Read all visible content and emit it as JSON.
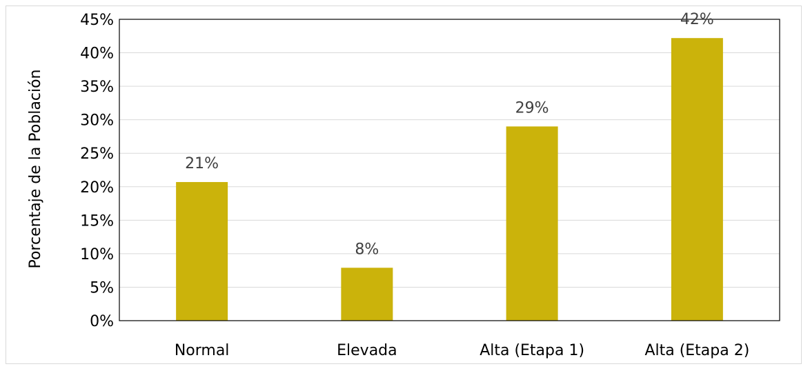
{
  "chart_data": {
    "type": "bar",
    "categories": [
      "Normal",
      "Elevada",
      "Alta (Etapa 1)",
      "Alta (Etapa 2)"
    ],
    "values": [
      20.7,
      7.9,
      29.0,
      42.2
    ],
    "data_labels": [
      "21%",
      "8%",
      "29%",
      "42%"
    ],
    "title": "",
    "xlabel": "",
    "ylabel": "Porcentaje de la Población",
    "ylim": [
      0,
      45
    ],
    "yticks": [
      0,
      5,
      10,
      15,
      20,
      25,
      30,
      35,
      40,
      45
    ],
    "ytick_labels": [
      "0%",
      "5%",
      "10%",
      "15%",
      "20%",
      "25%",
      "30%",
      "35%",
      "40%",
      "45%"
    ],
    "grid": true,
    "legend": "none",
    "bar_color": "#CBB30B",
    "grid_color": "#d9d9d9",
    "frame_color": "#000000"
  }
}
